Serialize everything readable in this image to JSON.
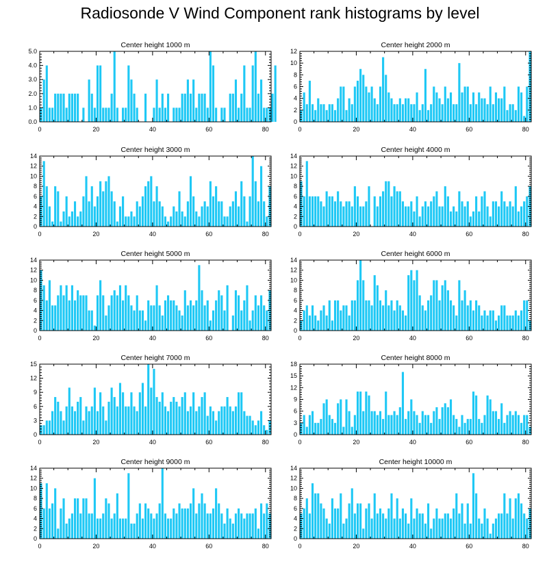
{
  "title": "Radiosonde V Wind Component rank histograms by level",
  "bar_color": "#1ec8f5",
  "chart_data": [
    {
      "type": "bar",
      "title": "Center height 1000 m",
      "xlim": [
        0,
        82
      ],
      "ylim": [
        0,
        5
      ],
      "yticks": [
        0,
        1,
        2,
        3,
        4,
        5
      ],
      "ytick_labels": [
        "0.0",
        "1.0",
        "2.0",
        "3.0",
        "4.0",
        "5.0"
      ],
      "xticks": [
        0,
        20,
        40,
        60,
        80
      ],
      "values": [
        1,
        3,
        4,
        1,
        1,
        2,
        2,
        2,
        2,
        1,
        2,
        2,
        2,
        2,
        0,
        1,
        0,
        3,
        2,
        1,
        4,
        4,
        1,
        1,
        1,
        2,
        5,
        1,
        0,
        1,
        1,
        4,
        3,
        2,
        1,
        0,
        0,
        2,
        0,
        0,
        1,
        3,
        1,
        2,
        1,
        2,
        0,
        1,
        1,
        1,
        2,
        2,
        3,
        2,
        3,
        1,
        2,
        2,
        2,
        1,
        5,
        4,
        1,
        0,
        1,
        1,
        0,
        2,
        2,
        3,
        1,
        2,
        4,
        1,
        1,
        4,
        5,
        2,
        3,
        1,
        1,
        1,
        2,
        4
      ]
    },
    {
      "type": "bar",
      "title": "Center height 2000 m",
      "xlim": [
        0,
        82
      ],
      "ylim": [
        0,
        12
      ],
      "yticks": [
        0,
        2,
        4,
        6,
        8,
        10,
        12
      ],
      "ytick_labels": [
        "0",
        "2",
        "4",
        "6",
        "8",
        "10",
        "12"
      ],
      "xticks": [
        0,
        20,
        40,
        60,
        80
      ],
      "values": [
        2,
        5,
        3,
        7,
        3,
        2,
        4,
        3,
        3,
        2,
        3,
        3,
        2,
        4,
        6,
        6,
        2,
        4,
        3,
        6,
        7,
        9,
        8,
        6,
        5,
        6,
        4,
        3,
        6,
        11,
        8,
        5,
        4,
        3,
        3,
        4,
        3,
        4,
        4,
        3,
        3,
        5,
        2,
        3,
        9,
        2,
        3,
        6,
        5,
        4,
        3,
        6,
        4,
        5,
        3,
        3,
        10,
        5,
        6,
        6,
        3,
        5,
        3,
        5,
        4,
        4,
        3,
        6,
        3,
        5,
        4,
        4,
        6,
        2,
        3,
        3,
        2,
        6,
        5,
        1,
        6,
        12
      ]
    },
    {
      "type": "bar",
      "title": "Center height 3000 m",
      "xlim": [
        0,
        82
      ],
      "ylim": [
        0,
        14
      ],
      "yticks": [
        0,
        2,
        4,
        6,
        8,
        10,
        12,
        14
      ],
      "ytick_labels": [
        "0",
        "2",
        "4",
        "6",
        "8",
        "10",
        "12",
        "14"
      ],
      "xticks": [
        0,
        20,
        40,
        60,
        80
      ],
      "values": [
        6,
        13,
        8,
        4,
        1,
        8,
        7,
        1,
        3,
        6,
        2,
        3,
        5,
        2,
        3,
        6,
        10,
        5,
        8,
        4,
        6,
        9,
        7,
        9,
        10,
        7,
        5,
        1,
        4,
        6,
        2,
        2,
        3,
        2,
        5,
        4,
        6,
        8,
        9,
        10,
        5,
        8,
        5,
        4,
        2,
        1,
        2,
        4,
        3,
        7,
        3,
        2,
        5,
        10,
        6,
        3,
        2,
        4,
        5,
        4,
        9,
        6,
        8,
        5,
        5,
        2,
        2,
        4,
        5,
        7,
        4,
        9,
        6,
        1,
        6,
        14,
        9,
        5,
        12,
        5,
        2,
        8
      ]
    },
    {
      "type": "bar",
      "title": "Center height 4000 m",
      "xlim": [
        0,
        82
      ],
      "ylim": [
        0,
        14
      ],
      "yticks": [
        0,
        2,
        4,
        6,
        8,
        10,
        12,
        14
      ],
      "ytick_labels": [
        "0",
        "2",
        "4",
        "6",
        "8",
        "10",
        "12",
        "14"
      ],
      "xticks": [
        0,
        20,
        40,
        60,
        80
      ],
      "values": [
        9,
        6,
        13,
        6,
        6,
        6,
        6,
        5,
        4,
        7,
        6,
        6,
        5,
        7,
        5,
        4,
        5,
        5,
        4,
        8,
        6,
        4,
        4,
        5,
        8,
        0,
        6,
        4,
        6,
        7,
        9,
        9,
        6,
        8,
        7,
        7,
        5,
        4,
        4,
        5,
        3,
        6,
        2,
        4,
        5,
        4,
        5,
        6,
        7,
        4,
        4,
        8,
        6,
        3,
        4,
        3,
        7,
        5,
        4,
        5,
        2,
        3,
        6,
        3,
        6,
        7,
        4,
        2,
        5,
        5,
        4,
        7,
        5,
        4,
        5,
        4,
        8,
        3,
        4,
        5,
        6,
        8
      ]
    },
    {
      "type": "bar",
      "title": "Center height 5000 m",
      "xlim": [
        0,
        82
      ],
      "ylim": [
        0,
        14
      ],
      "yticks": [
        0,
        2,
        4,
        6,
        8,
        10,
        12,
        14
      ],
      "ytick_labels": [
        "0",
        "2",
        "4",
        "6",
        "8",
        "10",
        "12",
        "14"
      ],
      "xticks": [
        0,
        20,
        40,
        60,
        80
      ],
      "values": [
        12,
        9,
        6,
        10,
        5,
        5,
        7,
        9,
        7,
        9,
        6,
        9,
        6,
        8,
        7,
        7,
        7,
        4,
        4,
        1,
        7,
        10,
        7,
        3,
        5,
        7,
        8,
        7,
        9,
        6,
        9,
        7,
        5,
        4,
        7,
        4,
        4,
        2,
        6,
        5,
        5,
        9,
        5,
        3,
        6,
        7,
        6,
        6,
        5,
        4,
        3,
        8,
        5,
        6,
        5,
        6,
        13,
        8,
        5,
        6,
        2,
        4,
        6,
        8,
        7,
        4,
        9,
        0,
        3,
        8,
        7,
        4,
        6,
        9,
        2,
        4,
        7,
        5,
        7,
        5,
        4,
        8
      ]
    },
    {
      "type": "bar",
      "title": "Center height 6000 m",
      "xlim": [
        0,
        82
      ],
      "ylim": [
        0,
        14
      ],
      "yticks": [
        0,
        2,
        4,
        6,
        8,
        10,
        12,
        14
      ],
      "ytick_labels": [
        "0",
        "2",
        "4",
        "6",
        "8",
        "10",
        "12",
        "14"
      ],
      "xticks": [
        0,
        20,
        40,
        60,
        80
      ],
      "values": [
        2,
        4,
        5,
        3,
        5,
        3,
        2,
        4,
        5,
        3,
        6,
        2,
        6,
        6,
        4,
        5,
        5,
        3,
        6,
        6,
        10,
        14,
        10,
        6,
        6,
        5,
        11,
        9,
        6,
        5,
        8,
        5,
        6,
        4,
        6,
        5,
        4,
        3,
        11,
        12,
        10,
        12,
        7,
        5,
        4,
        6,
        7,
        10,
        10,
        6,
        9,
        10,
        8,
        6,
        5,
        3,
        10,
        6,
        8,
        5,
        6,
        4,
        6,
        5,
        3,
        4,
        3,
        4,
        4,
        2,
        3,
        5,
        5,
        3,
        3,
        3,
        4,
        3,
        4,
        6,
        6,
        2
      ]
    },
    {
      "type": "bar",
      "title": "Center height 7000 m",
      "xlim": [
        0,
        82
      ],
      "ylim": [
        0,
        15
      ],
      "yticks": [
        0,
        3,
        6,
        9,
        12,
        15
      ],
      "ytick_labels": [
        "0",
        "3",
        "6",
        "9",
        "12",
        "15"
      ],
      "xticks": [
        0,
        20,
        40,
        60,
        80
      ],
      "values": [
        2,
        2,
        3,
        3,
        5,
        8,
        7,
        5,
        3,
        6,
        10,
        6,
        5,
        7,
        8,
        3,
        6,
        5,
        6,
        10,
        5,
        9,
        6,
        3,
        7,
        10,
        8,
        6,
        11,
        9,
        6,
        6,
        9,
        6,
        5,
        9,
        11,
        6,
        15,
        10,
        14,
        8,
        7,
        9,
        6,
        5,
        7,
        8,
        7,
        6,
        8,
        9,
        5,
        6,
        9,
        5,
        6,
        8,
        9,
        4,
        6,
        5,
        3,
        5,
        6,
        6,
        8,
        6,
        5,
        6,
        9,
        9,
        5,
        4,
        4,
        3,
        2,
        3,
        5,
        2,
        1,
        3
      ]
    },
    {
      "type": "bar",
      "title": "Center height 8000 m",
      "xlim": [
        0,
        82
      ],
      "ylim": [
        0,
        18
      ],
      "yticks": [
        0,
        3,
        6,
        9,
        12,
        15,
        18
      ],
      "ytick_labels": [
        "0",
        "3",
        "6",
        "9",
        "12",
        "15",
        "18"
      ],
      "xticks": [
        0,
        20,
        40,
        60,
        80
      ],
      "values": [
        3,
        5,
        2,
        5,
        6,
        3,
        3,
        4,
        8,
        9,
        5,
        4,
        3,
        8,
        9,
        2,
        9,
        6,
        2,
        5,
        11,
        11,
        6,
        11,
        10,
        6,
        6,
        5,
        6,
        4,
        11,
        5,
        5,
        6,
        5,
        7,
        16,
        4,
        6,
        9,
        6,
        5,
        3,
        6,
        5,
        5,
        3,
        6,
        7,
        4,
        7,
        8,
        7,
        9,
        5,
        4,
        2,
        5,
        3,
        4,
        4,
        11,
        10,
        4,
        3,
        5,
        10,
        9,
        6,
        6,
        4,
        8,
        3,
        5,
        6,
        5,
        6,
        5,
        3,
        5,
        5,
        2
      ]
    },
    {
      "type": "bar",
      "title": "Center height 9000 m",
      "xlim": [
        0,
        82
      ],
      "ylim": [
        0,
        14
      ],
      "yticks": [
        0,
        2,
        4,
        6,
        8,
        10,
        12,
        14
      ],
      "ytick_labels": [
        "0",
        "2",
        "4",
        "6",
        "8",
        "10",
        "12",
        "14"
      ],
      "xticks": [
        0,
        20,
        40,
        60,
        80
      ],
      "values": [
        11,
        6,
        11,
        6,
        7,
        10,
        2,
        6,
        8,
        3,
        4,
        5,
        8,
        8,
        5,
        8,
        8,
        5,
        5,
        12,
        4,
        4,
        5,
        8,
        7,
        4,
        5,
        9,
        4,
        4,
        4,
        13,
        3,
        3,
        5,
        7,
        4,
        7,
        6,
        5,
        4,
        5,
        7,
        14,
        5,
        4,
        4,
        6,
        5,
        7,
        6,
        6,
        6,
        7,
        10,
        5,
        7,
        9,
        7,
        5,
        5,
        6,
        10,
        7,
        5,
        3,
        6,
        4,
        3,
        5,
        6,
        5,
        4,
        5,
        5,
        5,
        6,
        2,
        7,
        5,
        7,
        5
      ]
    },
    {
      "type": "bar",
      "title": "Center height 10000 m",
      "xlim": [
        0,
        82
      ],
      "ylim": [
        0,
        14
      ],
      "yticks": [
        0,
        2,
        4,
        6,
        8,
        10,
        12,
        14
      ],
      "ytick_labels": [
        "0",
        "2",
        "4",
        "6",
        "8",
        "10",
        "12",
        "14"
      ],
      "xticks": [
        0,
        20,
        40,
        60,
        80
      ],
      "values": [
        5,
        6,
        8,
        5,
        11,
        9,
        9,
        7,
        6,
        4,
        3,
        8,
        6,
        6,
        9,
        3,
        4,
        7,
        10,
        5,
        7,
        7,
        2,
        6,
        7,
        4,
        9,
        5,
        6,
        5,
        4,
        6,
        9,
        4,
        8,
        4,
        6,
        5,
        3,
        8,
        4,
        6,
        5,
        5,
        3,
        7,
        2,
        4,
        6,
        4,
        4,
        5,
        5,
        4,
        6,
        9,
        5,
        7,
        3,
        7,
        3,
        13,
        9,
        4,
        3,
        6,
        4,
        1,
        3,
        4,
        5,
        5,
        9,
        5,
        8,
        4,
        8,
        9,
        7,
        5,
        4,
        6
      ]
    }
  ]
}
